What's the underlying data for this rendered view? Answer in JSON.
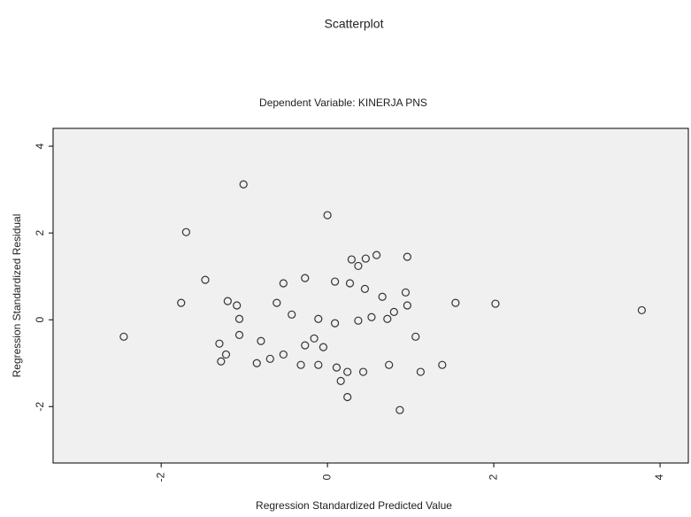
{
  "chart_data": {
    "type": "scatter",
    "title": "Scatterplot",
    "subtitle": "Dependent Variable: KINERJA PNS",
    "xlabel": "Regression Standardized Predicted Value",
    "ylabel": "Regression Standardized Residual",
    "color": "#333333",
    "xlim": [
      -3.3,
      4.34
    ],
    "xticks": [
      -2,
      0,
      2,
      4
    ],
    "ylim": [
      -3.3,
      4.41
    ],
    "yticks": [
      -2,
      0,
      2,
      4
    ],
    "x": [
      -1.01,
      0,
      -1.7,
      -2.45,
      -1.76,
      -1.47,
      -1.2,
      -1.09,
      -0.61,
      -0.53,
      -0.27,
      0.09,
      0.27,
      0.37,
      0.29,
      0.59,
      0.46,
      0.96,
      0.45,
      0.66,
      0.94,
      0.96,
      0.8,
      1.54,
      2.02,
      3.78,
      -1.06,
      -0.43,
      -0.11,
      0.09,
      0.37,
      0.53,
      0.72,
      -1.06,
      -0.8,
      -1.3,
      -1.22,
      -1.28,
      -0.16,
      -0.27,
      -0.05,
      1.06,
      -0.85,
      -0.69,
      -0.53,
      -0.32,
      -0.11,
      0.11,
      0.24,
      0.43,
      0.74,
      1.12,
      1.38,
      0.16,
      0.24,
      0.87
    ],
    "y": [
      3.12,
      2.41,
      2.02,
      -0.39,
      0.39,
      0.92,
      0.43,
      0.33,
      0.39,
      0.84,
      0.96,
      0.88,
      0.84,
      1.24,
      1.39,
      1.49,
      1.41,
      1.45,
      0.71,
      0.53,
      0.63,
      0.33,
      0.18,
      0.39,
      0.37,
      0.22,
      0.02,
      0.12,
      0.02,
      -0.08,
      -0.02,
      0.06,
      0.02,
      -0.35,
      -0.49,
      -0.55,
      -0.8,
      -0.96,
      -0.43,
      -0.59,
      -0.63,
      -0.39,
      -1.0,
      -0.9,
      -0.8,
      -1.04,
      -1.04,
      -1.1,
      -1.2,
      -1.2,
      -1.04,
      -1.2,
      -1.04,
      -1.41,
      -1.78,
      -2.08
    ]
  }
}
